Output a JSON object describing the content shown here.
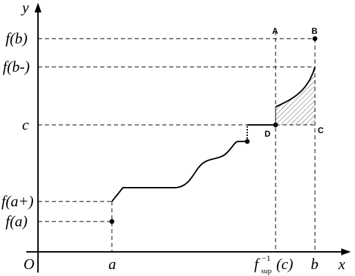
{
  "axes": {
    "x": "x",
    "y": "y",
    "origin": "O"
  },
  "y_labels": [
    "f(b)",
    "f(b-)",
    "c",
    "f(a+)",
    "f(a)"
  ],
  "x_labels": {
    "a": "a",
    "inverse": {
      "base": "f",
      "sup": "−1",
      "sub": "sup",
      "arg": "(c)"
    },
    "b": "b"
  },
  "points": [
    "A",
    "B",
    "C",
    "D"
  ]
}
